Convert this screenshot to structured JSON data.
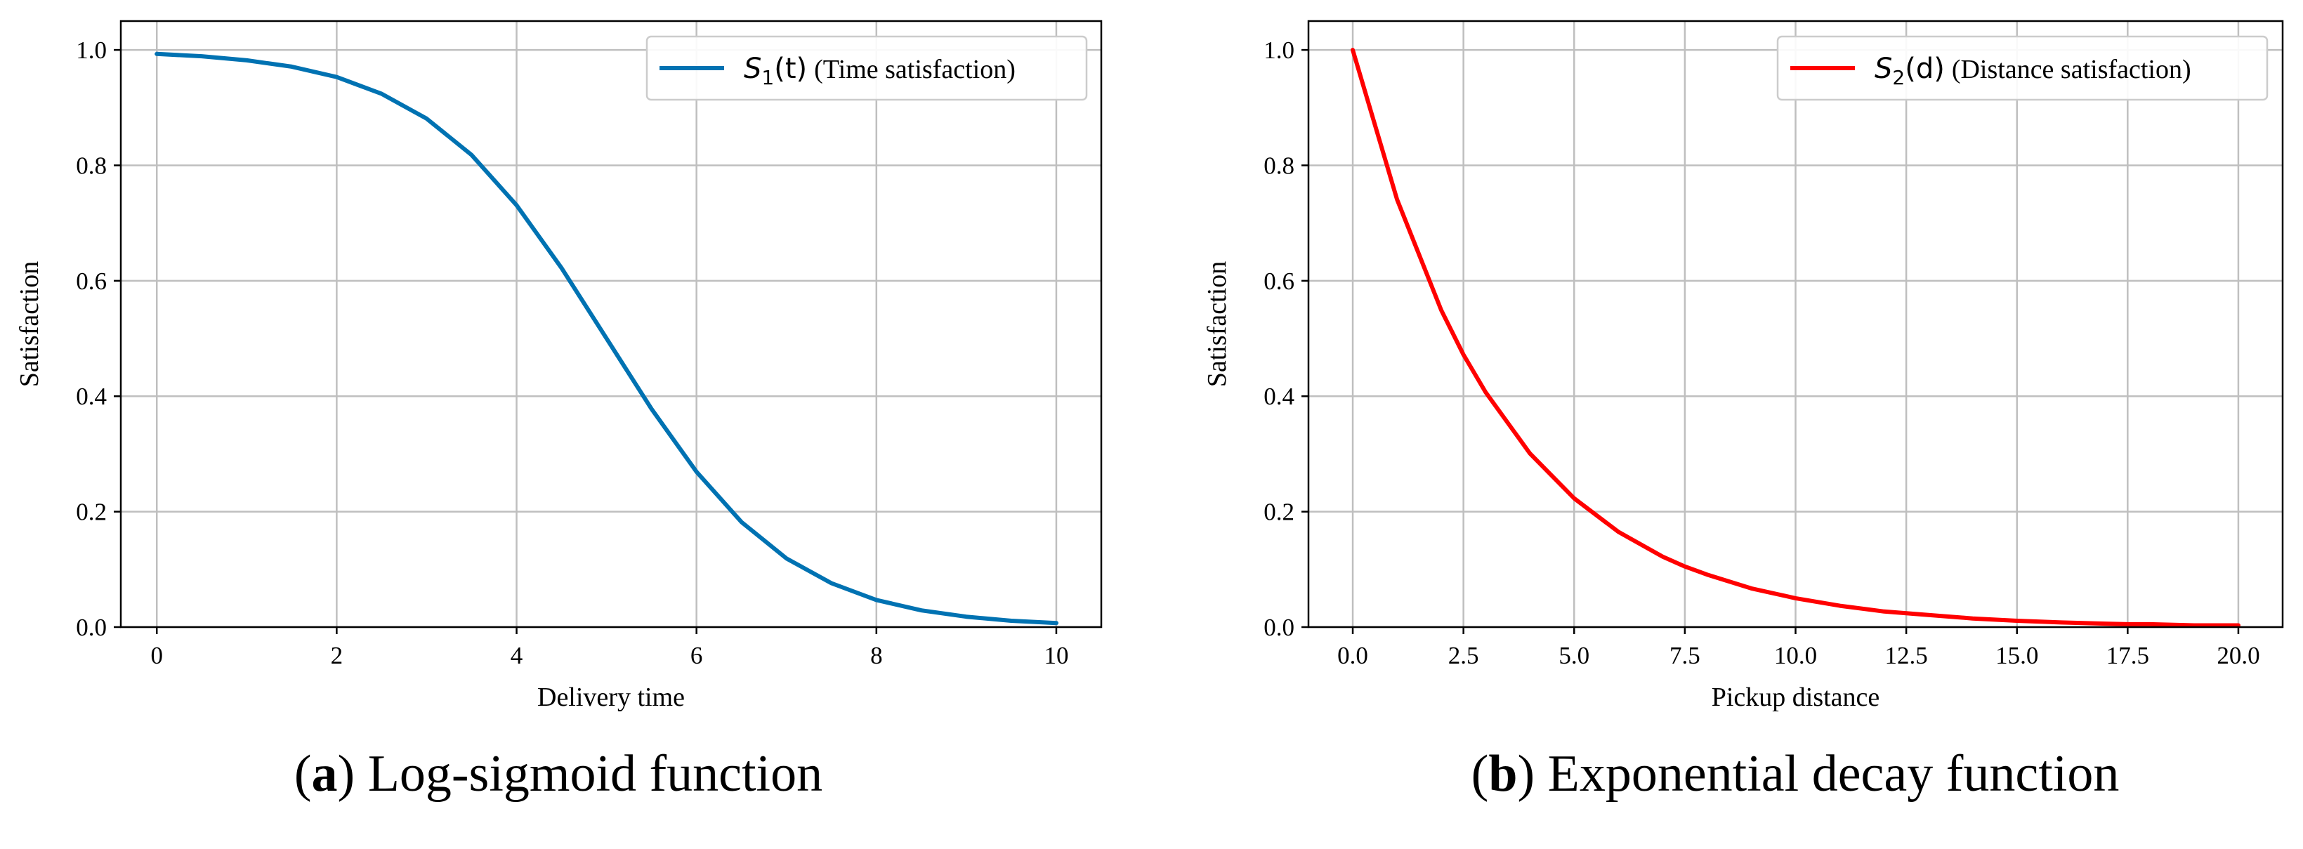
{
  "chart_data": [
    {
      "type": "line",
      "xlabel": "Delivery time",
      "ylabel": "Satisfaction",
      "xlim": [
        -0.4,
        10.5
      ],
      "ylim": [
        0.0,
        1.05
      ],
      "xticks": [
        "0",
        "2",
        "4",
        "6",
        "8",
        "10"
      ],
      "yticks": [
        "0.0",
        "0.2",
        "0.4",
        "0.6",
        "0.8",
        "1.0"
      ],
      "grid": true,
      "legend_position": "top-right",
      "series": [
        {
          "name": "S1(t) (Time satisfaction)",
          "legend_math": "S",
          "legend_sub": "1",
          "legend_arg": "(t)",
          "legend_desc": "(Time satisfaction)",
          "color": "#0072b2",
          "x": [
            0,
            0.5,
            1,
            1.5,
            2,
            2.5,
            3,
            3.5,
            4,
            4.5,
            5,
            5.5,
            6,
            6.5,
            7,
            7.5,
            8,
            8.5,
            9,
            9.5,
            10
          ],
          "y": [
            0.993,
            0.989,
            0.982,
            0.971,
            0.953,
            0.924,
            0.881,
            0.818,
            0.731,
            0.622,
            0.5,
            0.378,
            0.269,
            0.182,
            0.119,
            0.076,
            0.047,
            0.029,
            0.018,
            0.011,
            0.007
          ]
        }
      ],
      "caption_label": "a",
      "caption_text": "Log-sigmoid function"
    },
    {
      "type": "line",
      "xlabel": "Pickup distance",
      "ylabel": "Satisfaction",
      "xlim": [
        -1.0,
        21.0
      ],
      "ylim": [
        0.0,
        1.05
      ],
      "xticks": [
        "0.0",
        "2.5",
        "5.0",
        "7.5",
        "10.0",
        "12.5",
        "15.0",
        "17.5",
        "20.0"
      ],
      "yticks": [
        "0.0",
        "0.2",
        "0.4",
        "0.6",
        "0.8",
        "1.0"
      ],
      "grid": true,
      "legend_position": "top-right",
      "series": [
        {
          "name": "S2(d) (Distance satisfaction)",
          "legend_math": "S",
          "legend_sub": "2",
          "legend_arg": "(d)",
          "legend_desc": "(Distance satisfaction)",
          "color": "#ff0000",
          "x": [
            0,
            1,
            2,
            2.5,
            3,
            4,
            5,
            6,
            7,
            7.5,
            8,
            9,
            10,
            11,
            12,
            12.5,
            13,
            14,
            15,
            16,
            17,
            17.5,
            18,
            19,
            20
          ],
          "y": [
            1.0,
            0.741,
            0.549,
            0.472,
            0.407,
            0.301,
            0.223,
            0.165,
            0.122,
            0.105,
            0.091,
            0.067,
            0.05,
            0.037,
            0.027,
            0.024,
            0.021,
            0.015,
            0.011,
            0.008,
            0.006,
            0.005,
            0.005,
            0.003,
            0.003
          ]
        }
      ],
      "caption_label": "b",
      "caption_text": "Exponential decay function"
    }
  ]
}
